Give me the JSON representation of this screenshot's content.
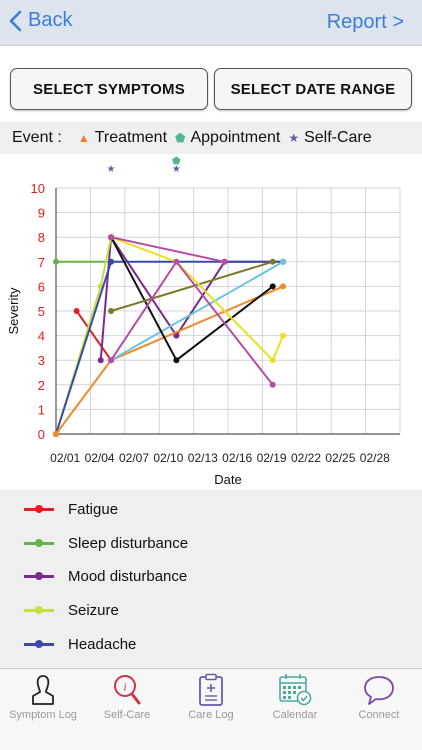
{
  "nav": {
    "back_label": "Back",
    "report_label": "Report >"
  },
  "buttons": {
    "select_symptoms": "SELECT SYMPTOMS",
    "select_date_range": "SELECT DATE RANGE"
  },
  "events": {
    "label": "Event :",
    "items": [
      {
        "label": "Treatment",
        "symbol": "▲",
        "color": "#f07a2e"
      },
      {
        "label": "Appointment",
        "symbol": "⬟",
        "color": "#4fb893"
      },
      {
        "label": "Self-Care",
        "symbol": "★",
        "color": "#6a5aa8"
      }
    ]
  },
  "chart_data": {
    "type": "line",
    "ylabel": "Severity",
    "xlabel": "Date",
    "ylim": [
      0,
      10
    ],
    "yticks": [
      "0",
      "1",
      "2",
      "3",
      "4",
      "5",
      "6",
      "7",
      "8",
      "9",
      "10"
    ],
    "xticks": [
      "02/01",
      "02/04",
      "02/07",
      "02/10",
      "02/13",
      "02/16",
      "02/19",
      "02/22",
      "02/25",
      "02/28"
    ],
    "grid": true,
    "series": [
      {
        "name": "Fatigue",
        "color": "#e02020",
        "points": [
          [
            0.6,
            5
          ],
          [
            1.6,
            3
          ]
        ]
      },
      {
        "name": "Sleep disturbance",
        "color": "#62b54a",
        "points": [
          [
            0,
            7
          ],
          [
            1.6,
            7
          ]
        ]
      },
      {
        "name": "Mood disturbance",
        "color": "#7a2a8c",
        "points": [
          [
            1.3,
            3
          ],
          [
            1.6,
            8
          ],
          [
            3.5,
            4
          ],
          [
            4.9,
            7
          ],
          [
            6.6,
            7
          ]
        ]
      },
      {
        "name": "Seizure",
        "color": "#c3e040",
        "points": [
          [
            0,
            0
          ],
          [
            1.3,
            6
          ],
          [
            1.6,
            8
          ]
        ]
      },
      {
        "name": "Headache",
        "color": "#3a4aa8",
        "points": [
          [
            0,
            0
          ],
          [
            1.6,
            7
          ],
          [
            6.6,
            7
          ]
        ]
      },
      {
        "name": "",
        "color": "#f08a2a",
        "points": [
          [
            0,
            0
          ],
          [
            1.6,
            3
          ],
          [
            6.6,
            6
          ]
        ]
      },
      {
        "name": "",
        "color": "#6ec3e0",
        "points": [
          [
            1.6,
            3
          ],
          [
            6.6,
            7
          ]
        ]
      },
      {
        "name": "",
        "color": "#111111",
        "points": [
          [
            1.6,
            8
          ],
          [
            3.5,
            3
          ],
          [
            6.3,
            6
          ]
        ]
      },
      {
        "name": "",
        "color": "#7a7a2a",
        "points": [
          [
            1.6,
            5
          ],
          [
            6.3,
            7
          ]
        ]
      },
      {
        "name": "",
        "color": "#e8e020",
        "points": [
          [
            1.6,
            8
          ],
          [
            3.5,
            7
          ],
          [
            6.3,
            3
          ],
          [
            6.6,
            4
          ]
        ]
      },
      {
        "name": "",
        "color": "#b84aa8",
        "points": [
          [
            1.6,
            8
          ],
          [
            4.9,
            7
          ]
        ]
      },
      {
        "name": "",
        "color": "#b84aa8",
        "points": [
          [
            1.6,
            3
          ],
          [
            3.5,
            7
          ],
          [
            6.3,
            2
          ]
        ]
      }
    ],
    "events": [
      {
        "type": "Self-Care",
        "x": 1.6
      },
      {
        "type": "Appointment",
        "x": 3.5
      },
      {
        "type": "Self-Care",
        "x": 3.5
      }
    ]
  },
  "legend": [
    {
      "label": "Fatigue",
      "color": "#e02020"
    },
    {
      "label": "Sleep disturbance",
      "color": "#62b54a"
    },
    {
      "label": "Mood disturbance",
      "color": "#7a2a8c"
    },
    {
      "label": "Seizure",
      "color": "#c3e040"
    },
    {
      "label": "Headache",
      "color": "#3a4aa8"
    }
  ],
  "tabs": [
    {
      "label": "Symptom Log",
      "icon": "person-icon",
      "color": "#222222"
    },
    {
      "label": "Self-Care",
      "icon": "magnifier-icon",
      "color": "#d0344a"
    },
    {
      "label": "Care Log",
      "icon": "clipboard-icon",
      "color": "#6a5aa8"
    },
    {
      "label": "Calendar",
      "icon": "calendar-icon",
      "color": "#4fa8a0"
    },
    {
      "label": "Connect",
      "icon": "chat-bubble-icon",
      "color": "#7a4aa8"
    }
  ]
}
